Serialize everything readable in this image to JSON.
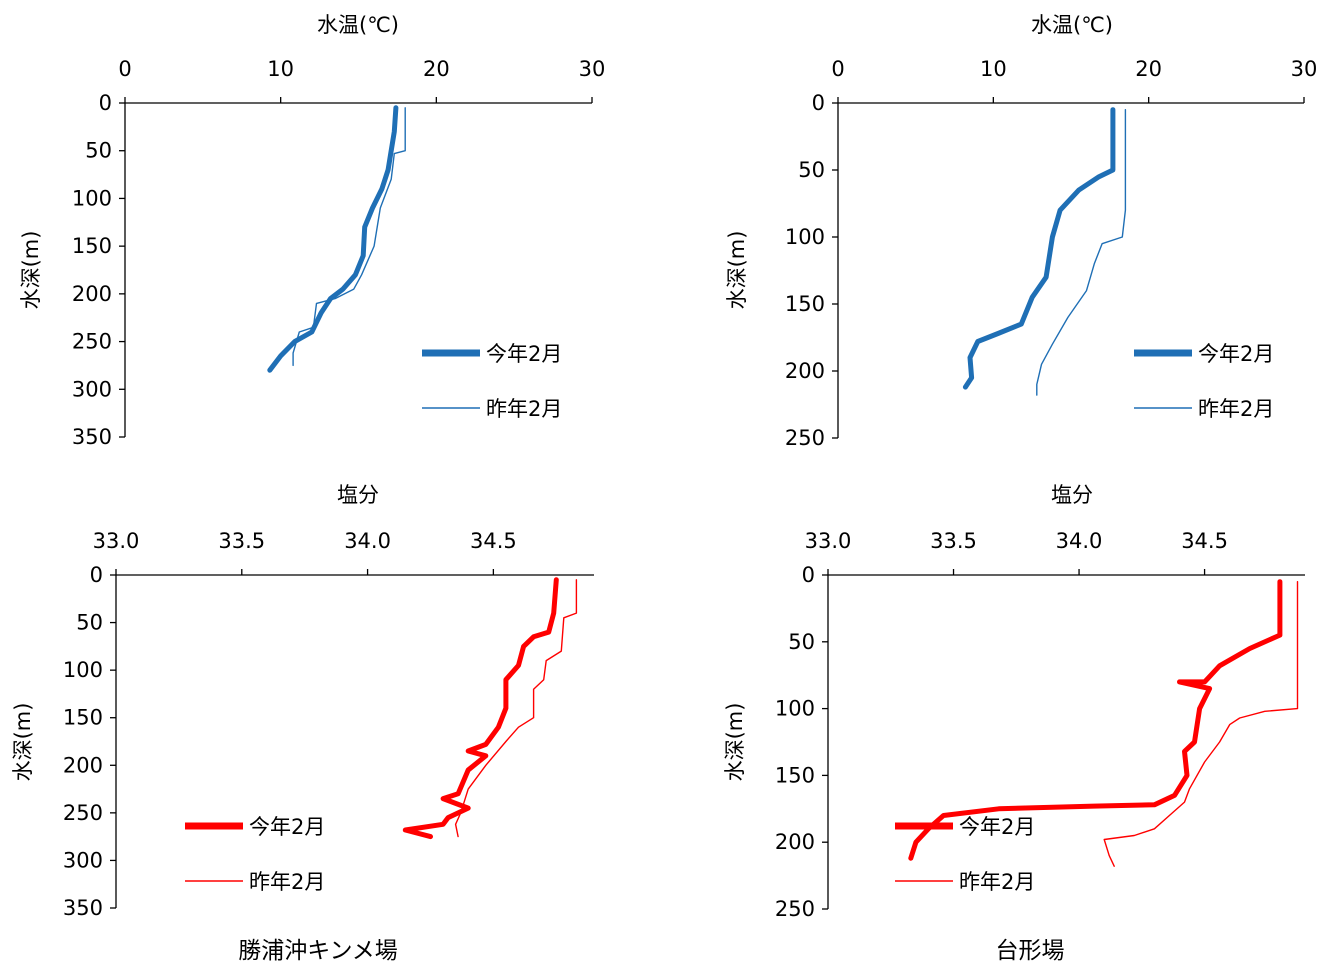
{
  "chart_data": [
    {
      "type": "line",
      "xlabel": "水温(℃)",
      "ylabel": "水深(m)",
      "xlim": [
        0,
        30
      ],
      "ylim": [
        0,
        350
      ],
      "x_ticks": [
        "0",
        "10",
        "20",
        "30"
      ],
      "y_ticks": [
        "0",
        "50",
        "100",
        "150",
        "200",
        "250",
        "300",
        "350"
      ],
      "y_inverted": true,
      "x_axis_position": "top",
      "legend_placement": "right",
      "color": "#1F6FB5",
      "series": [
        {
          "name": "今年2月",
          "style": "thick",
          "points": [
            [
              17.4,
              5
            ],
            [
              17.3,
              30
            ],
            [
              17.1,
              50
            ],
            [
              16.9,
              70
            ],
            [
              16.5,
              90
            ],
            [
              15.9,
              110
            ],
            [
              15.4,
              130
            ],
            [
              15.3,
              160
            ],
            [
              14.8,
              180
            ],
            [
              14.0,
              195
            ],
            [
              13.2,
              205
            ],
            [
              12.6,
              220
            ],
            [
              12.0,
              240
            ],
            [
              10.9,
              250
            ],
            [
              10.0,
              265
            ],
            [
              9.3,
              280
            ]
          ]
        },
        {
          "name": "昨年2月",
          "style": "thin",
          "points": [
            [
              18.0,
              5
            ],
            [
              18.0,
              50
            ],
            [
              17.3,
              53
            ],
            [
              17.1,
              80
            ],
            [
              16.4,
              110
            ],
            [
              16.0,
              150
            ],
            [
              15.2,
              180
            ],
            [
              14.7,
              195
            ],
            [
              13.5,
              205
            ],
            [
              12.3,
              210
            ],
            [
              12.1,
              235
            ],
            [
              11.2,
              240
            ],
            [
              10.8,
              262
            ],
            [
              10.8,
              275
            ]
          ]
        }
      ],
      "caption": "勝浦沖キンメ場"
    },
    {
      "type": "line",
      "xlabel": "水温(℃)",
      "ylabel": "水深(m)",
      "xlim": [
        0,
        30
      ],
      "ylim": [
        0,
        250
      ],
      "x_ticks": [
        "0",
        "10",
        "20",
        "30"
      ],
      "y_ticks": [
        "0",
        "50",
        "100",
        "150",
        "200",
        "250"
      ],
      "y_inverted": true,
      "x_axis_position": "top",
      "legend_placement": "right",
      "color": "#1F6FB5",
      "series": [
        {
          "name": "今年2月",
          "style": "thick",
          "points": [
            [
              17.7,
              5
            ],
            [
              17.7,
              50
            ],
            [
              16.8,
              55
            ],
            [
              15.5,
              65
            ],
            [
              14.3,
              80
            ],
            [
              13.8,
              100
            ],
            [
              13.4,
              130
            ],
            [
              12.5,
              145
            ],
            [
              11.8,
              165
            ],
            [
              10.3,
              172
            ],
            [
              9.0,
              178
            ],
            [
              8.5,
              190
            ],
            [
              8.6,
              205
            ],
            [
              8.2,
              212
            ]
          ]
        },
        {
          "name": "昨年2月",
          "style": "thin",
          "points": [
            [
              18.5,
              5
            ],
            [
              18.5,
              80
            ],
            [
              18.3,
              100
            ],
            [
              17.0,
              105
            ],
            [
              16.5,
              120
            ],
            [
              16.0,
              140
            ],
            [
              14.8,
              160
            ],
            [
              13.8,
              180
            ],
            [
              13.1,
              195
            ],
            [
              12.8,
              210
            ],
            [
              12.8,
              218
            ]
          ]
        }
      ]
    },
    {
      "type": "line",
      "xlabel": "塩分",
      "ylabel": "水深(m)",
      "xlim": [
        33.0,
        34.9
      ],
      "ylim": [
        0,
        350
      ],
      "x_ticks": [
        "33.0",
        "33.5",
        "34.0",
        "34.5"
      ],
      "y_ticks": [
        "0",
        "50",
        "100",
        "150",
        "200",
        "250",
        "300",
        "350"
      ],
      "y_inverted": true,
      "x_axis_position": "top",
      "legend_placement": "bottom-left",
      "color": "#FF0000",
      "series": [
        {
          "name": "今年2月",
          "style": "thick",
          "points": [
            [
              34.75,
              5
            ],
            [
              34.74,
              40
            ],
            [
              34.72,
              60
            ],
            [
              34.66,
              65
            ],
            [
              34.62,
              75
            ],
            [
              34.6,
              95
            ],
            [
              34.55,
              110
            ],
            [
              34.55,
              140
            ],
            [
              34.52,
              160
            ],
            [
              34.47,
              178
            ],
            [
              34.4,
              185
            ],
            [
              34.47,
              190
            ],
            [
              34.4,
              205
            ],
            [
              34.36,
              230
            ],
            [
              34.3,
              235
            ],
            [
              34.4,
              245
            ],
            [
              34.32,
              255
            ],
            [
              34.3,
              262
            ],
            [
              34.15,
              268
            ],
            [
              34.25,
              275
            ]
          ]
        },
        {
          "name": "昨年2月",
          "style": "thin",
          "points": [
            [
              34.83,
              5
            ],
            [
              34.83,
              40
            ],
            [
              34.78,
              45
            ],
            [
              34.77,
              80
            ],
            [
              34.71,
              90
            ],
            [
              34.7,
              110
            ],
            [
              34.66,
              120
            ],
            [
              34.66,
              150
            ],
            [
              34.6,
              160
            ],
            [
              34.55,
              175
            ],
            [
              34.47,
              200
            ],
            [
              34.4,
              225
            ],
            [
              34.37,
              250
            ],
            [
              34.35,
              262
            ],
            [
              34.36,
              275
            ]
          ]
        }
      ],
      "caption": "勝浦沖キンメ場"
    },
    {
      "type": "line",
      "xlabel": "塩分",
      "ylabel": "水深(m)",
      "xlim": [
        33.0,
        34.9
      ],
      "ylim": [
        0,
        250
      ],
      "x_ticks": [
        "33.0",
        "33.5",
        "34.0",
        "34.5"
      ],
      "y_ticks": [
        "0",
        "50",
        "100",
        "150",
        "200",
        "250"
      ],
      "y_inverted": true,
      "x_axis_position": "top",
      "legend_placement": "bottom-left",
      "color": "#FF0000",
      "series": [
        {
          "name": "今年2月",
          "style": "thick",
          "points": [
            [
              34.8,
              5
            ],
            [
              34.8,
              45
            ],
            [
              34.68,
              55
            ],
            [
              34.56,
              68
            ],
            [
              34.5,
              80
            ],
            [
              34.4,
              80
            ],
            [
              34.52,
              85
            ],
            [
              34.48,
              100
            ],
            [
              34.46,
              125
            ],
            [
              34.42,
              132
            ],
            [
              34.43,
              150
            ],
            [
              34.38,
              165
            ],
            [
              34.3,
              172
            ],
            [
              34.06,
              173
            ],
            [
              33.68,
              175
            ],
            [
              33.46,
              180
            ],
            [
              33.4,
              190
            ],
            [
              33.35,
              200
            ],
            [
              33.33,
              212
            ]
          ]
        },
        {
          "name": "昨年2月",
          "style": "thin",
          "points": [
            [
              34.87,
              5
            ],
            [
              34.87,
              100
            ],
            [
              34.74,
              102
            ],
            [
              34.64,
              107
            ],
            [
              34.6,
              112
            ],
            [
              34.56,
              125
            ],
            [
              34.5,
              140
            ],
            [
              34.44,
              160
            ],
            [
              34.42,
              170
            ],
            [
              34.36,
              180
            ],
            [
              34.3,
              190
            ],
            [
              34.22,
              195
            ],
            [
              34.1,
              198
            ],
            [
              34.12,
              210
            ],
            [
              34.14,
              218
            ]
          ]
        }
      ],
      "caption": "台形場"
    }
  ]
}
